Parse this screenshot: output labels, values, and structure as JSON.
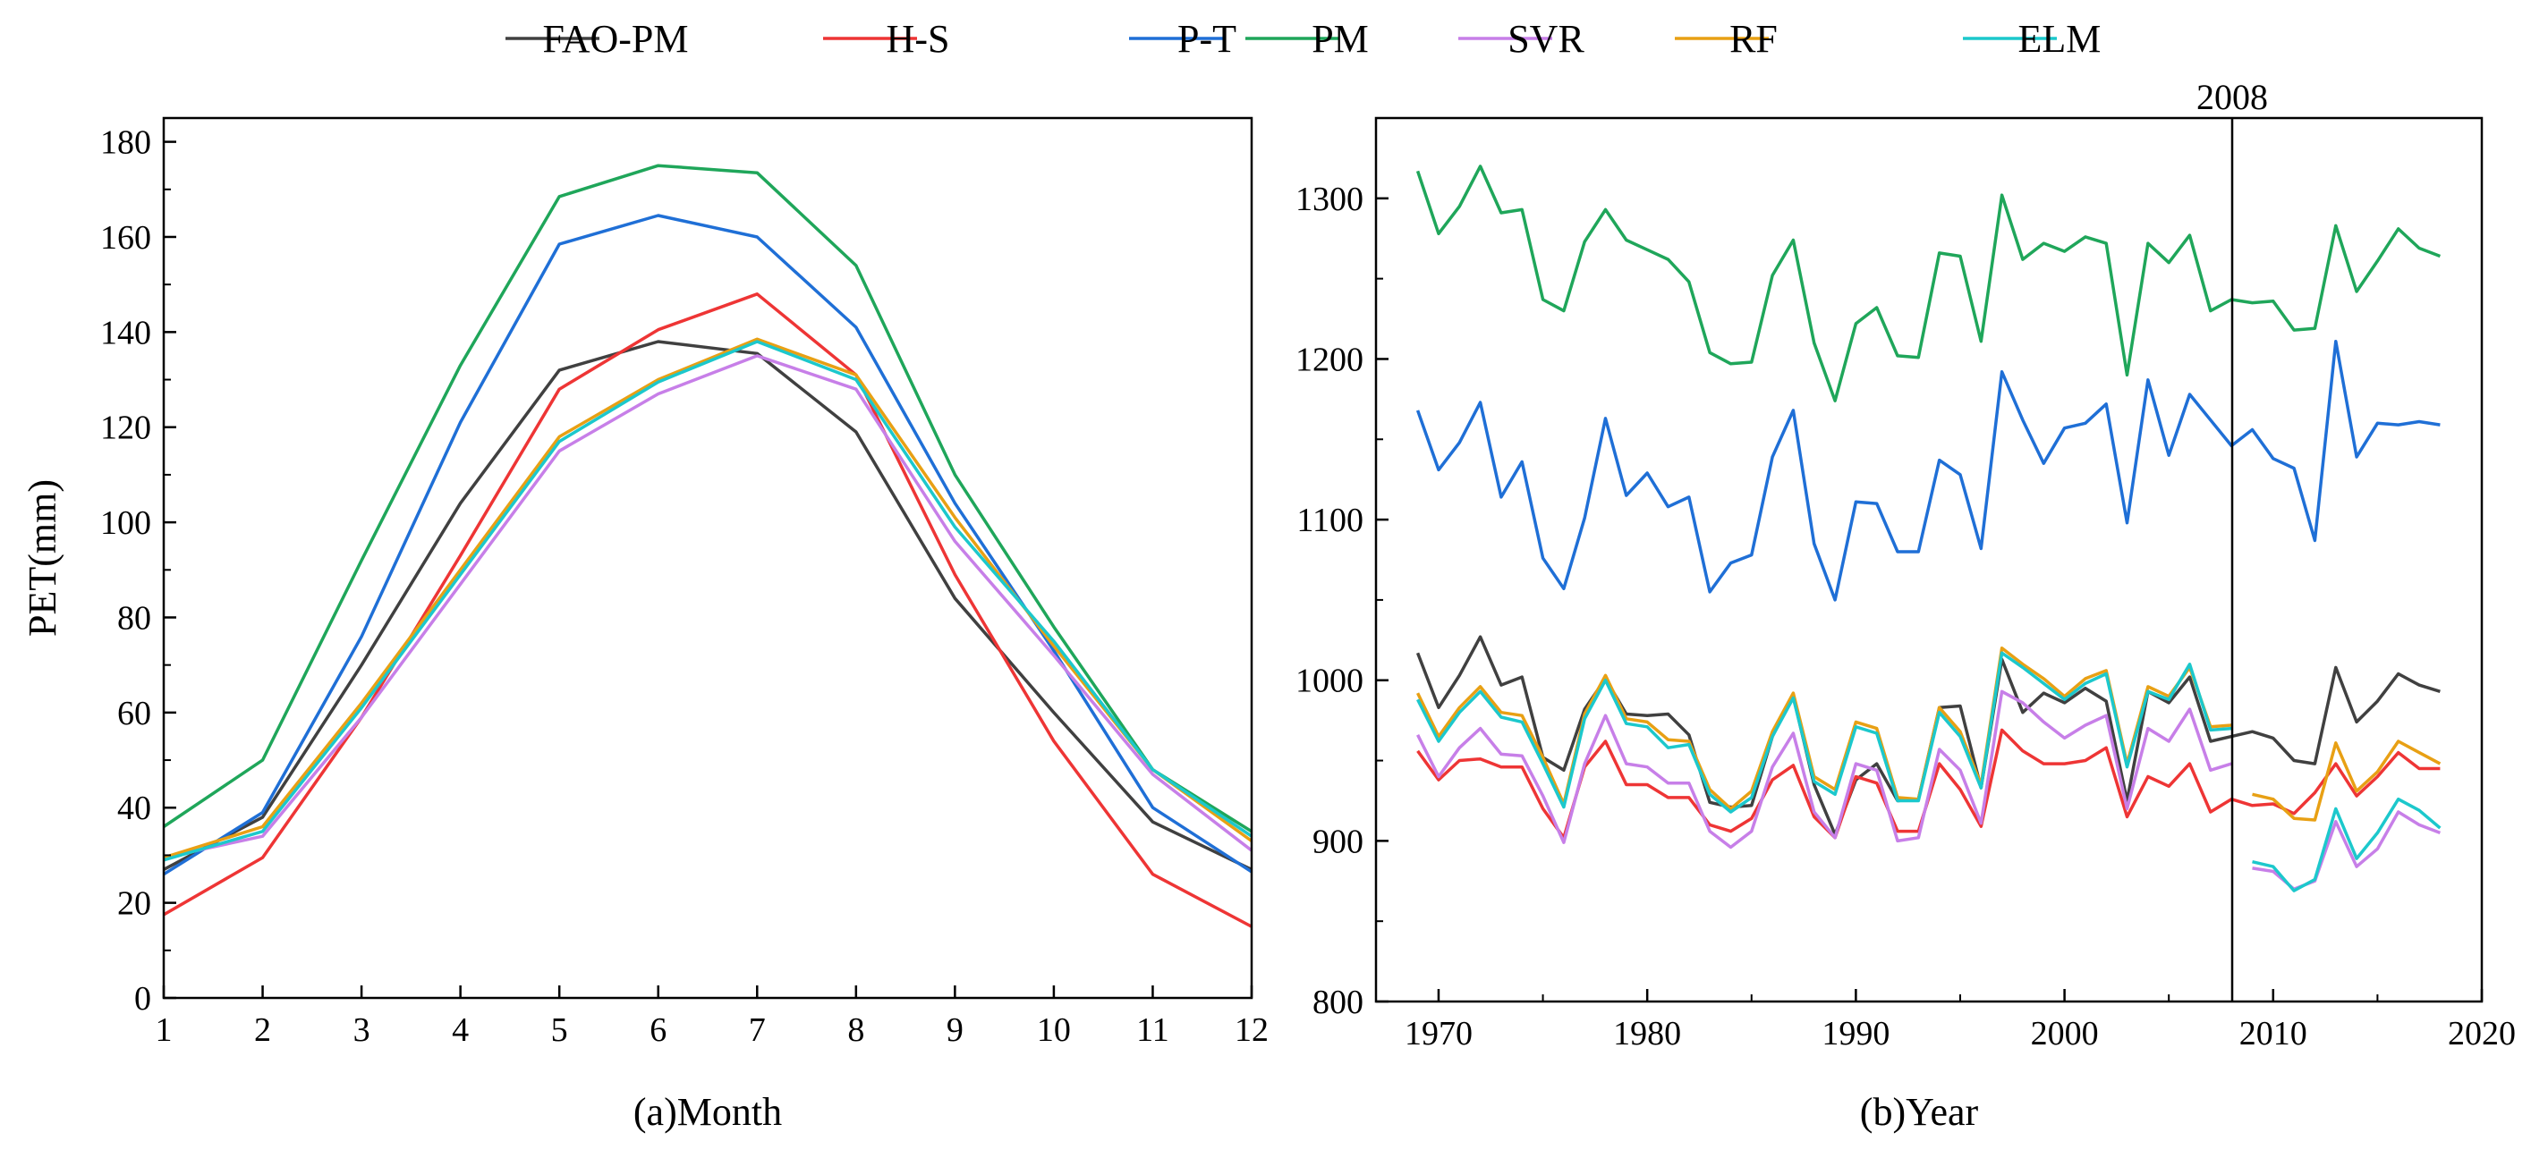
{
  "legend": [
    {
      "name": "FAO-PM",
      "color": "#404040"
    },
    {
      "name": "H-S",
      "color": "#ee3535"
    },
    {
      "name": "P-T",
      "color": "#1f6fd6"
    },
    {
      "name": "PM",
      "color": "#1fa65a"
    },
    {
      "name": "SVR",
      "color": "#c77fe8"
    },
    {
      "name": "RF",
      "color": "#e8a014"
    },
    {
      "name": "ELM",
      "color": "#1cc8cc"
    }
  ],
  "chart_data": [
    {
      "type": "line",
      "xlabel": "(a)Month",
      "ylabel": "PET(mm)",
      "xlim": [
        1,
        12
      ],
      "ylim": [
        0,
        185
      ],
      "x": [
        1,
        2,
        3,
        4,
        5,
        6,
        7,
        8,
        9,
        10,
        11,
        12
      ],
      "x_ticks": [
        "1",
        "2",
        "3",
        "4",
        "5",
        "6",
        "7",
        "8",
        "9",
        "10",
        "11",
        "12"
      ],
      "y_ticks": [
        "0",
        "20",
        "40",
        "60",
        "80",
        "100",
        "120",
        "140",
        "160",
        "180"
      ],
      "series": [
        {
          "name": "FAO-PM",
          "values": [
            27,
            38,
            70,
            104,
            132,
            138,
            135.5,
            119,
            84,
            60,
            37,
            27
          ]
        },
        {
          "name": "H-S",
          "values": [
            17.5,
            29.5,
            59,
            93,
            128,
            140.5,
            148,
            131,
            89,
            54,
            26,
            15
          ]
        },
        {
          "name": "P-T",
          "values": [
            26,
            39,
            76,
            121,
            158.5,
            164.5,
            160,
            141,
            104,
            73,
            40,
            26.5
          ]
        },
        {
          "name": "PM",
          "values": [
            36,
            50,
            92,
            133,
            168.5,
            175,
            173.5,
            154,
            110,
            78,
            48,
            35
          ]
        },
        {
          "name": "SVR",
          "values": [
            29.5,
            34,
            59,
            87,
            115,
            127,
            135,
            128,
            96,
            72,
            47,
            31
          ]
        },
        {
          "name": "RF",
          "values": [
            29.5,
            36,
            62,
            90,
            118,
            130,
            138.5,
            131,
            101,
            74,
            48,
            33
          ]
        },
        {
          "name": "ELM",
          "values": [
            29,
            35,
            61,
            89,
            117,
            129.5,
            138,
            130,
            99,
            75,
            48,
            34
          ]
        }
      ]
    },
    {
      "type": "line",
      "xlabel": "(b)Year",
      "xlim": [
        1967,
        2020
      ],
      "ylim": [
        800,
        1350
      ],
      "x_ticks": [
        "1970",
        "1980",
        "1990",
        "2000",
        "2010",
        "2020"
      ],
      "y_ticks": [
        "800",
        "900",
        "1000",
        "1100",
        "1200",
        "1300"
      ],
      "vline": {
        "x": 2008,
        "label": "2008"
      },
      "series": [
        {
          "name": "PM",
          "years": [
            1969,
            1970,
            1971,
            1972,
            1973,
            1974,
            1975,
            1976,
            1977,
            1978,
            1979,
            1980,
            1981,
            1982,
            1983,
            1984,
            1985,
            1986,
            1987,
            1988,
            1989,
            1990,
            1991,
            1992,
            1993,
            1994,
            1995,
            1996,
            1997,
            1998,
            1999,
            2000,
            2001,
            2002,
            2003,
            2004,
            2005,
            2006,
            2007,
            2008,
            2009,
            2010,
            2011,
            2012,
            2013,
            2014,
            2015,
            2016,
            2017,
            2018
          ],
          "values": [
            1317,
            1278,
            1295,
            1320,
            1291,
            1293,
            1237,
            1230,
            1273,
            1293,
            1274,
            1268,
            1262,
            1248,
            1204,
            1197,
            1198,
            1252,
            1274,
            1210,
            1174,
            1222,
            1232,
            1202,
            1201,
            1266,
            1264,
            1211,
            1302,
            1262,
            1272,
            1267,
            1276,
            1272,
            1190,
            1272,
            1260,
            1277,
            1230,
            1237,
            1235,
            1236,
            1218,
            1219,
            1283,
            1242,
            1261,
            1281,
            1269,
            1264
          ]
        },
        {
          "name": "P-T",
          "years": [
            1969,
            1970,
            1971,
            1972,
            1973,
            1974,
            1975,
            1976,
            1977,
            1978,
            1979,
            1980,
            1981,
            1982,
            1983,
            1984,
            1985,
            1986,
            1987,
            1988,
            1989,
            1990,
            1991,
            1992,
            1993,
            1994,
            1995,
            1996,
            1997,
            1998,
            1999,
            2000,
            2001,
            2002,
            2003,
            2004,
            2005,
            2006,
            2007,
            2008,
            2009,
            2010,
            2011,
            2012,
            2013,
            2014,
            2015,
            2016,
            2017,
            2018
          ],
          "values": [
            1168,
            1131,
            1148,
            1173,
            1114,
            1136,
            1076,
            1057,
            1101,
            1163,
            1115,
            1129,
            1108,
            1114,
            1055,
            1073,
            1078,
            1139,
            1168,
            1085,
            1050,
            1111,
            1110,
            1080,
            1080,
            1137,
            1128,
            1082,
            1192,
            1162,
            1135,
            1157,
            1160,
            1172,
            1098,
            1187,
            1140,
            1178,
            1162,
            1146,
            1156,
            1138,
            1132,
            1087,
            1211,
            1139,
            1160,
            1159,
            1161,
            1159
          ]
        },
        {
          "name": "FAO-PM",
          "years": [
            1969,
            1970,
            1971,
            1972,
            1973,
            1974,
            1975,
            1976,
            1977,
            1978,
            1979,
            1980,
            1981,
            1982,
            1983,
            1984,
            1985,
            1986,
            1987,
            1988,
            1989,
            1990,
            1991,
            1992,
            1993,
            1994,
            1995,
            1996,
            1997,
            1998,
            1999,
            2000,
            2001,
            2002,
            2003,
            2004,
            2005,
            2006,
            2007,
            2008,
            2009,
            2010,
            2011,
            2012,
            2013,
            2014,
            2015,
            2016,
            2017,
            2018
          ],
          "values": [
            1017,
            983,
            1003,
            1027,
            997,
            1002,
            952,
            944,
            982,
            1001,
            979,
            978,
            979,
            966,
            924,
            921,
            922,
            965,
            990,
            935,
            904,
            938,
            948,
            925,
            926,
            983,
            984,
            933,
            1013,
            980,
            992,
            986,
            995,
            987,
            925,
            993,
            986,
            1002,
            962,
            965,
            968,
            964,
            950,
            948,
            1008,
            974,
            987,
            1004,
            997,
            993
          ]
        },
        {
          "name": "H-S",
          "years": [
            1969,
            1970,
            1971,
            1972,
            1973,
            1974,
            1975,
            1976,
            1977,
            1978,
            1979,
            1980,
            1981,
            1982,
            1983,
            1984,
            1985,
            1986,
            1987,
            1988,
            1989,
            1990,
            1991,
            1992,
            1993,
            1994,
            1995,
            1996,
            1997,
            1998,
            1999,
            2000,
            2001,
            2002,
            2003,
            2004,
            2005,
            2006,
            2007,
            2008,
            2009,
            2010,
            2011,
            2012,
            2013,
            2014,
            2015,
            2016,
            2017,
            2018
          ],
          "values": [
            956,
            938,
            950,
            951,
            946,
            946,
            920,
            902,
            946,
            962,
            935,
            935,
            927,
            927,
            910,
            906,
            914,
            938,
            947,
            915,
            902,
            940,
            936,
            906,
            906,
            948,
            932,
            909,
            969,
            956,
            948,
            948,
            950,
            958,
            915,
            940,
            934,
            948,
            918,
            926,
            922,
            923,
            917,
            930,
            948,
            928,
            940,
            955,
            945,
            945
          ]
        },
        {
          "name": "SVR",
          "years": [
            1969,
            1970,
            1971,
            1972,
            1973,
            1974,
            1975,
            1976,
            1977,
            1978,
            1979,
            1980,
            1981,
            1982,
            1983,
            1984,
            1985,
            1986,
            1987,
            1988,
            1989,
            1990,
            1991,
            1992,
            1993,
            1994,
            1995,
            1996,
            1997,
            1998,
            1999,
            2000,
            2001,
            2002,
            2003,
            2004,
            2005,
            2006,
            2007,
            2008,
            null,
            2009,
            2010,
            2011,
            2012,
            2013,
            2014,
            2015,
            2016,
            2017,
            2018
          ],
          "values": [
            966,
            940,
            958,
            970,
            954,
            953,
            928,
            899,
            948,
            978,
            948,
            946,
            936,
            936,
            906,
            896,
            906,
            946,
            967,
            918,
            902,
            948,
            944,
            900,
            902,
            957,
            944,
            911,
            993,
            986,
            974,
            964,
            972,
            978,
            920,
            970,
            962,
            982,
            944,
            948,
            null,
            883,
            881,
            870,
            875,
            912,
            884,
            895,
            918,
            910,
            905
          ]
        },
        {
          "name": "RF",
          "years": [
            1969,
            1970,
            1971,
            1972,
            1973,
            1974,
            1975,
            1976,
            1977,
            1978,
            1979,
            1980,
            1981,
            1982,
            1983,
            1984,
            1985,
            1986,
            1987,
            1988,
            1989,
            1990,
            1991,
            1992,
            1993,
            1994,
            1995,
            1996,
            1997,
            1998,
            1999,
            2000,
            2001,
            2002,
            2003,
            2004,
            2005,
            2006,
            2007,
            2008,
            null,
            2009,
            2010,
            2011,
            2012,
            2013,
            2014,
            2015,
            2016,
            2017,
            2018
          ],
          "values": [
            992,
            965,
            983,
            996,
            980,
            978,
            952,
            923,
            979,
            1003,
            976,
            974,
            963,
            962,
            932,
            920,
            931,
            968,
            992,
            940,
            932,
            974,
            970,
            927,
            926,
            983,
            968,
            935,
            1020,
            1010,
            1001,
            990,
            1001,
            1006,
            948,
            996,
            990,
            1008,
            971,
            972,
            null,
            929,
            926,
            914,
            913,
            961,
            931,
            943,
            962,
            955,
            948
          ]
        },
        {
          "name": "ELM",
          "years": [
            1969,
            1970,
            1971,
            1972,
            1973,
            1974,
            1975,
            1976,
            1977,
            1978,
            1979,
            1980,
            1981,
            1982,
            1983,
            1984,
            1985,
            1986,
            1987,
            1988,
            1989,
            1990,
            1991,
            1992,
            1993,
            1994,
            1995,
            1996,
            1997,
            1998,
            1999,
            2000,
            2001,
            2002,
            2003,
            2004,
            2005,
            2006,
            2007,
            2008,
            null,
            2009,
            2010,
            2011,
            2012,
            2013,
            2014,
            2015,
            2016,
            2017,
            2018
          ],
          "values": [
            988,
            962,
            980,
            993,
            977,
            974,
            948,
            921,
            976,
            1000,
            973,
            971,
            958,
            960,
            929,
            918,
            927,
            965,
            989,
            937,
            929,
            971,
            967,
            925,
            925,
            980,
            965,
            933,
            1017,
            1008,
            998,
            988,
            998,
            1004,
            946,
            993,
            988,
            1010,
            969,
            970,
            null,
            887,
            884,
            869,
            876,
            920,
            889,
            905,
            926,
            919,
            908
          ]
        }
      ]
    }
  ]
}
